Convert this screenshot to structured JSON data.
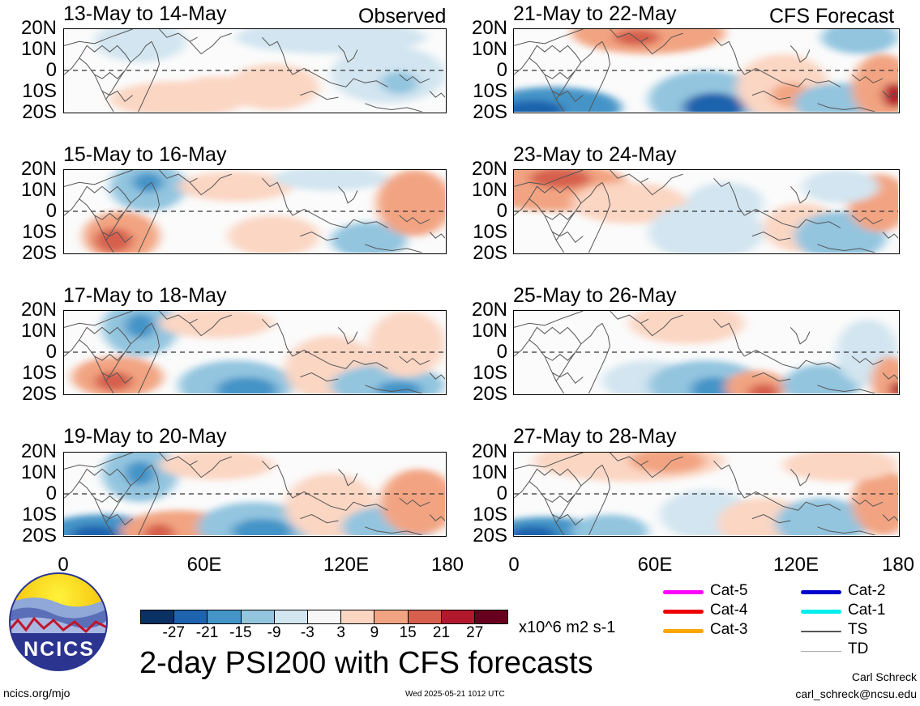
{
  "panels_left": [
    {
      "title": "13-May to 14-May",
      "tag": "Observed"
    },
    {
      "title": "15-May to 16-May"
    },
    {
      "title": "17-May to 18-May"
    },
    {
      "title": "19-May to 20-May"
    }
  ],
  "panels_right": [
    {
      "title": "21-May to 22-May",
      "tag": "CFS Forecast"
    },
    {
      "title": "23-May to 24-May"
    },
    {
      "title": "25-May to 26-May"
    },
    {
      "title": "27-May to 28-May"
    }
  ],
  "lat_labels": [
    "20N",
    "10N",
    "0",
    "10S",
    "20S"
  ],
  "lon_labels": [
    "0",
    "60E",
    "120E",
    "180"
  ],
  "colorbar": {
    "ticks": [
      "-27",
      "-21",
      "-15",
      "-9",
      "-3",
      "3",
      "9",
      "15",
      "21",
      "27"
    ],
    "units": "x10^6 m2 s-1",
    "colors": [
      "#0a3163",
      "#1e63ad",
      "#4494c8",
      "#93c5df",
      "#d2e5f0",
      "#f7f7f7",
      "#fbd6c3",
      "#f2a482",
      "#d6604d",
      "#b2182b",
      "#67001f"
    ]
  },
  "main_title": "2-day PSI200 with CFS forecasts",
  "logo_text": "NCICS",
  "legend": [
    {
      "label": "Cat-5",
      "color": "#ff00ff"
    },
    {
      "label": "Cat-4",
      "color": "#ee0000"
    },
    {
      "label": "Cat-3",
      "color": "#ffa500"
    },
    {
      "label": "Cat-2",
      "color": "#0000cc"
    },
    {
      "label": "Cat-1",
      "color": "#00eeee"
    },
    {
      "label": "TS",
      "color": "#555555"
    },
    {
      "label": "TD",
      "color": "#aaaaaa"
    }
  ],
  "footer": {
    "url": "ncics.org/mjo",
    "timestamp": "Wed 2025-05-21 1012 UTC",
    "author": "Carl Schreck",
    "email": "carl_schreck@ncsu.edu"
  }
}
